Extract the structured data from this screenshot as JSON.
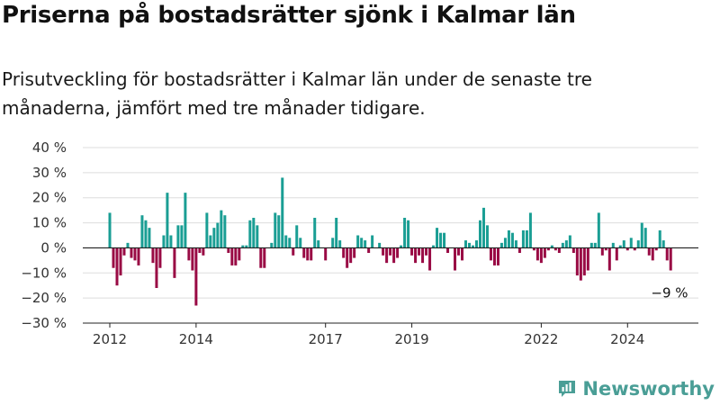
{
  "title": "Priserna på bostadsrätter sjönk i Kalmar län",
  "subtitle": "Prisutveckling för bostadsrätter i Kalmar län under de senaste tre månaderna, jämfört med tre månader tidigare.",
  "brand": {
    "name": "Newsworthy",
    "icon": "newsworthy-logo-icon"
  },
  "colors": {
    "positive": "#1a9e94",
    "negative": "#990a44",
    "grid": "#dddddd",
    "axis": "#222222"
  },
  "chart_data": {
    "type": "bar",
    "start": "2012-01",
    "ylim": [
      -30,
      40
    ],
    "yticks": [
      -30,
      -20,
      -10,
      0,
      10,
      20,
      30,
      40
    ],
    "ytick_labels": [
      "−30 %",
      "−20 %",
      "−10 %",
      "0 %",
      "10 %",
      "20 %",
      "30 %",
      "40 %"
    ],
    "xticks": [
      {
        "label": "2012",
        "index": 0
      },
      {
        "label": "2014",
        "index": 24
      },
      {
        "label": "2017",
        "index": 60
      },
      {
        "label": "2019",
        "index": 84
      },
      {
        "label": "2022",
        "index": 120
      },
      {
        "label": "2024",
        "index": 144
      }
    ],
    "grid": true,
    "annotation": {
      "text": "−9 %"
    },
    "values": [
      14,
      -8,
      -15,
      -11,
      -3,
      2,
      -4,
      -5,
      -7,
      13,
      11,
      8,
      -6,
      -16,
      -8,
      5,
      22,
      5,
      -12,
      9,
      9,
      22,
      -5,
      -9,
      -23,
      -2,
      -3,
      14,
      5,
      8,
      10,
      15,
      13,
      -2,
      -7,
      -7,
      -5,
      1,
      1,
      11,
      12,
      9,
      -8,
      -8,
      0,
      2,
      14,
      13,
      28,
      5,
      4,
      -3,
      9,
      4,
      -4,
      -5,
      -5,
      12,
      3,
      0,
      -5,
      0,
      4,
      12,
      3,
      -4,
      -8,
      -6,
      -4,
      5,
      4,
      3,
      -2,
      5,
      0,
      2,
      -3,
      -6,
      -3,
      -6,
      -4,
      1,
      12,
      11,
      -3,
      -6,
      -3,
      -6,
      -3,
      -9,
      1,
      8,
      6,
      6,
      -2,
      0,
      -9,
      -3,
      -5,
      3,
      2,
      1,
      3,
      11,
      16,
      9,
      -5,
      -7,
      -7,
      2,
      4,
      7,
      6,
      3,
      -2,
      7,
      7,
      14,
      -1,
      -5,
      -6,
      -4,
      -1,
      1,
      -1,
      -2,
      2,
      3,
      5,
      -2,
      -11,
      -13,
      -11,
      -9,
      2,
      2,
      14,
      -3,
      -1,
      -9,
      2,
      -5,
      1,
      3,
      -1,
      4,
      -1,
      3,
      10,
      8,
      -3,
      -5,
      -1,
      7,
      3,
      -5,
      -9
    ]
  }
}
